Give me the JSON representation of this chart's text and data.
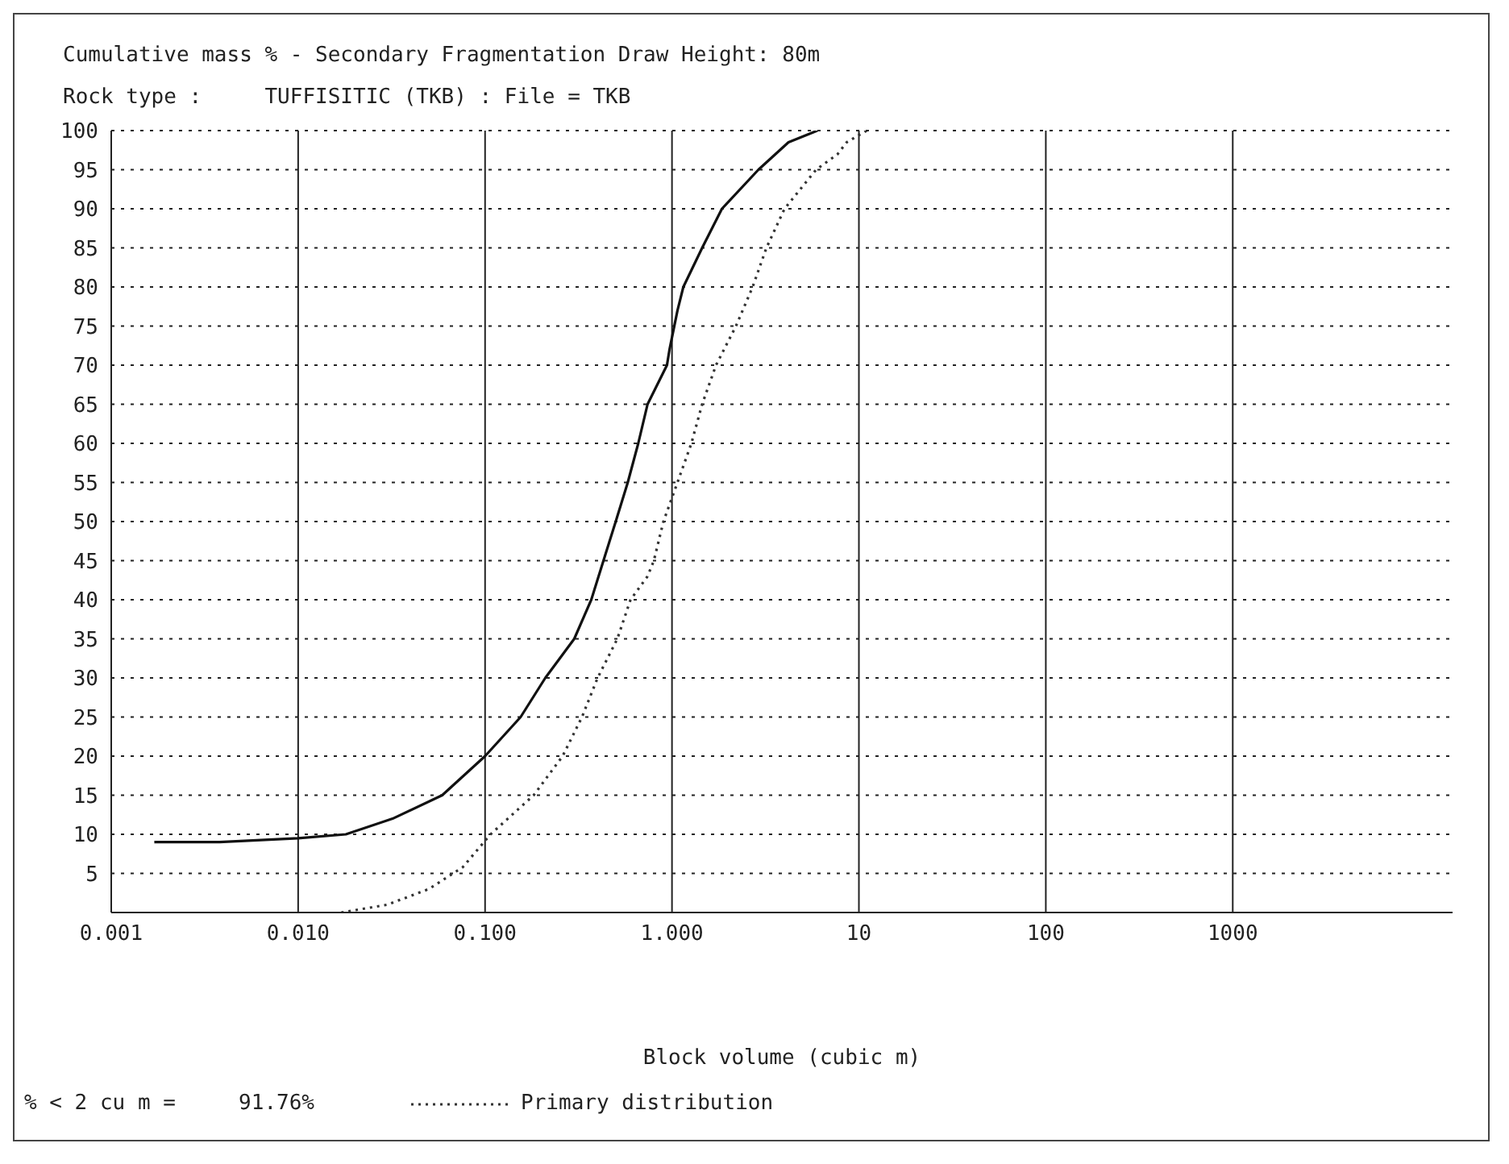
{
  "chart_data": {
    "type": "line",
    "title": "Cumulative mass % - Secondary Fragmentation Draw Height: 80m",
    "subtitle": "Rock type :     TUFFISITIC (TKB) : File = TKB",
    "xlabel": "Block volume (cubic m)",
    "series": [
      {
        "color": "#111111",
        "line_style": "solid",
        "x": [
          0.0017,
          0.0038,
          0.01,
          0.018,
          0.032,
          0.059,
          0.1,
          0.155,
          0.21,
          0.3,
          0.37,
          0.43,
          0.5,
          0.58,
          0.66,
          0.74,
          0.94,
          0.97,
          1.07,
          1.15,
          1.45,
          1.85,
          2.9,
          4.2,
          6
        ],
        "values": [
          9,
          9,
          9.5,
          10,
          12,
          15,
          20,
          25,
          30,
          35,
          40,
          45,
          50,
          55,
          60,
          65,
          70,
          72,
          77,
          80,
          85,
          90,
          95,
          98.5,
          100
        ]
      },
      {
        "name": "Primary distribution",
        "color": "#333333",
        "line_style": "dotted",
        "x": [
          0.017,
          0.03,
          0.05,
          0.076,
          0.107,
          0.182,
          0.26,
          0.33,
          0.4,
          0.51,
          0.6,
          0.74,
          0.8,
          0.9,
          1.07,
          1.27,
          1.45,
          1.72,
          2.2,
          2.7,
          3.2,
          4.0,
          5.9,
          7.7,
          8.6,
          11
        ],
        "values": [
          0,
          1,
          3,
          5.8,
          10,
          15,
          20,
          25,
          30,
          35,
          40,
          43,
          45,
          50,
          55,
          60,
          65,
          70,
          75,
          80,
          85,
          90,
          95,
          97,
          98.5,
          100
        ]
      }
    ],
    "log": "x",
    "xlim": [
      0.001,
      15000
    ],
    "xticks": [
      {
        "value": 0.001,
        "label": "0.001"
      },
      {
        "value": 0.01,
        "label": "0.010"
      },
      {
        "value": 0.1,
        "label": "0.100"
      },
      {
        "value": 1,
        "label": "1.000"
      },
      10,
      100,
      1000
    ],
    "ylim": [
      0,
      100
    ],
    "yticks": [
      {
        "value": 0,
        "label": null
      },
      5,
      10,
      15,
      20,
      25,
      30,
      35,
      40,
      45,
      50,
      55,
      60,
      65,
      70,
      75,
      80,
      85,
      90,
      95,
      100
    ],
    "grid": true,
    "legend": "bottom",
    "marker": "none",
    "annotations": [
      "% < 2 cu m =     91.76%"
    ]
  }
}
